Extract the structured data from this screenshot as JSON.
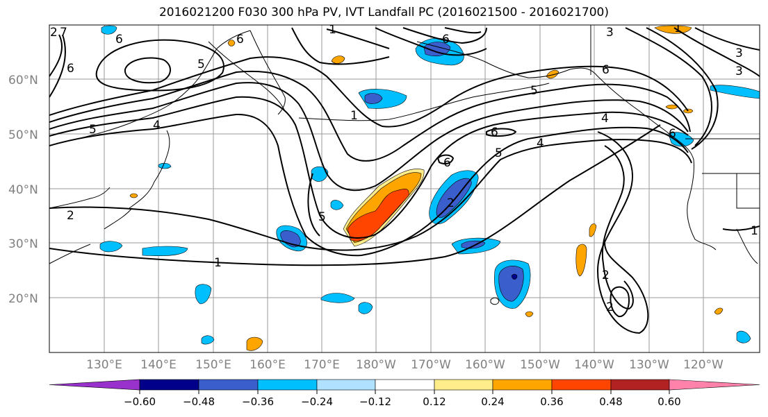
{
  "title": "2016021200 F030 300 hPa PV, IVT Landfall PC (2016021500 - 2016021700)",
  "map": {
    "lat_labels": [
      "60°N",
      "50°N",
      "40°N",
      "30°N",
      "20°N"
    ],
    "lon_labels": [
      "130°E",
      "140°E",
      "150°E",
      "160°E",
      "170°E",
      "180°W",
      "170°W",
      "160°W",
      "150°W",
      "140°W",
      "130°W",
      "120°W"
    ],
    "contour_labels": [
      "1",
      "6",
      "6",
      "5",
      "4",
      "6",
      "1",
      "3",
      "3",
      "6",
      "5",
      "6",
      "4",
      "1",
      "5",
      "6",
      "6",
      "5",
      "4",
      "2",
      "3",
      "5",
      "2",
      "2",
      "2",
      "1",
      "7",
      "6",
      "2",
      "1"
    ]
  },
  "colorbar": {
    "ticks": [
      "−0.60",
      "−0.48",
      "−0.36",
      "−0.24",
      "−0.12",
      "0.12",
      "0.24",
      "0.36",
      "0.48",
      "0.60"
    ],
    "colors": [
      "#9932CC",
      "#00008B",
      "#3A5FCD",
      "#00BFFF",
      "#B0E2FF",
      "#FFFFFF",
      "#FFEC8B",
      "#FFA500",
      "#FF4500",
      "#B22222",
      "#FF82AB"
    ]
  }
}
